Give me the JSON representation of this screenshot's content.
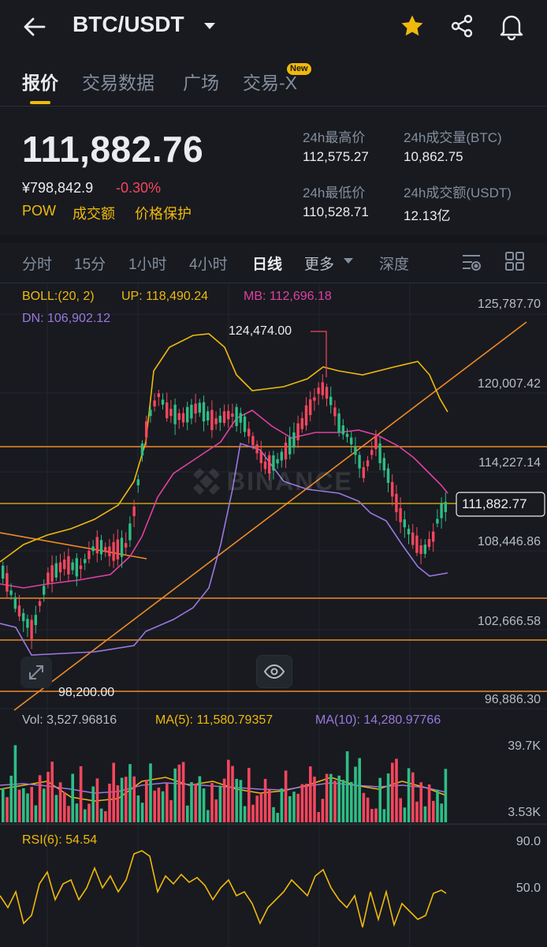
{
  "header": {
    "pair": "BTC/USDT",
    "colors": {
      "accent": "#f0b90b",
      "up": "#2ebd85",
      "down": "#f6465d"
    }
  },
  "tabs": [
    {
      "label": "报价",
      "active": true
    },
    {
      "label": "交易数据"
    },
    {
      "label": "广场"
    },
    {
      "label": "交易-X",
      "badge": "New"
    }
  ],
  "price": {
    "last": "111,882.76",
    "cny": "¥798,842.9",
    "change": "-0.30%",
    "tags": [
      "POW",
      "成交额",
      "价格保护"
    ]
  },
  "stats": {
    "high_label": "24h最高价",
    "high": "112,575.27",
    "vol_btc_label": "24h成交量(BTC)",
    "vol_btc": "10,862.75",
    "low_label": "24h最低价",
    "low": "110,528.71",
    "vol_usdt_label": "24h成交额(USDT)",
    "vol_usdt": "12.13亿"
  },
  "intervals": [
    {
      "label": "分时"
    },
    {
      "label": "15分"
    },
    {
      "label": "1小时"
    },
    {
      "label": "4小时"
    },
    {
      "label": "日线",
      "active": true
    },
    {
      "label": "更多"
    },
    {
      "label": "深度"
    }
  ],
  "chart": {
    "boll_label": "BOLL:(20, 2)",
    "up": "UP: 118,490.24",
    "mb": "MB: 112,696.18",
    "dn": "DN: 106,902.12",
    "price_axis": [
      "125,787.70",
      "120,007.42",
      "114,227.14",
      "108,446.86",
      "102,666.58",
      "96,886.30"
    ],
    "current_price_tag": "111,882.77",
    "high_marker": "124,474.00",
    "low_marker": "98,200.00",
    "watermark": "BINANCE"
  },
  "volume": {
    "vol": "Vol: 3,527.96816",
    "ma5": "MA(5): 11,580.79357",
    "ma10": "MA(10): 14,280.97766",
    "axis_top": "39.7K",
    "axis_bottom": "3.53K"
  },
  "rsi": {
    "label": "RSI(6): 54.54",
    "axis_top": "90.0",
    "axis_mid": "50.0"
  }
}
